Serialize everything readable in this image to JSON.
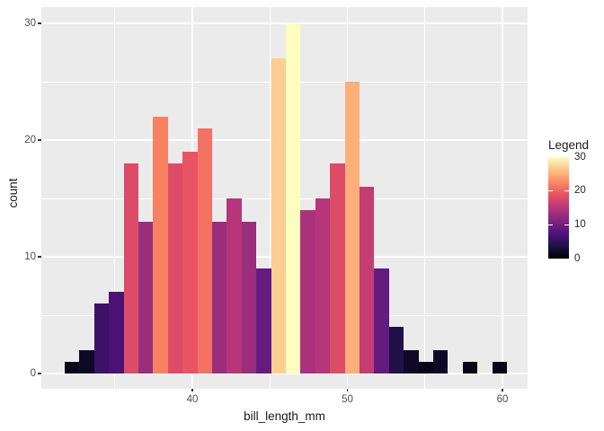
{
  "figure": {
    "background": "#FFFFFF",
    "panel_bg": "#EBEBEB",
    "grid_color": "#FFFFFF",
    "axis_text_color": "#4D4D4D",
    "tick_mark_color": "#333333"
  },
  "chart_data": {
    "type": "bar",
    "subtype": "histogram",
    "title": "",
    "xlabel": "bill_length_mm",
    "ylabel": "count",
    "bin_start": 31.77,
    "bin_width": 0.9507,
    "counts": [
      1,
      2,
      6,
      7,
      18,
      13,
      22,
      18,
      19,
      21,
      13,
      15,
      13,
      9,
      27,
      30,
      14,
      15,
      18,
      25,
      16,
      9,
      4,
      2,
      1,
      2,
      0,
      1,
      0,
      1
    ],
    "bar_colors": [
      "#080516",
      "#0F0928",
      "#3C1267",
      "#4A1275",
      "#DC4C68",
      "#9A2E7D",
      "#F88162",
      "#DC4C68",
      "#E75564",
      "#F37262",
      "#9A2E7D",
      "#B63679",
      "#9A2E7D",
      "#651A7E",
      "#FECE92",
      "#FCFDBF",
      "#A8327B",
      "#B63679",
      "#DC4C68",
      "#FDAF7A",
      "#C33D73",
      "#651A7E",
      "#20114B",
      "#0F0928",
      "#080516",
      "#0F0928",
      "#000000",
      "#080516",
      "#000000",
      "#080516"
    ],
    "x_major_ticks": [
      40,
      50,
      60
    ],
    "x_minor_ticks": [
      35,
      45,
      55
    ],
    "y_major_ticks": [
      0,
      10,
      20,
      30
    ],
    "y_minor_ticks": [
      5,
      15,
      25
    ],
    "xlim": [
      30.3,
      61.7
    ],
    "ylim": [
      -1.5,
      31.5
    ],
    "grid": true,
    "legend": {
      "title": "Legend",
      "position": "right",
      "labels": [
        30,
        20,
        10,
        0
      ],
      "tick_values": [
        20,
        10
      ],
      "range": [
        0,
        30
      ],
      "palette_name": "magma",
      "palette_stops": [
        "#000004",
        "#1D1147",
        "#51127C",
        "#822681",
        "#B63679",
        "#E65164",
        "#FB8861",
        "#FEC287",
        "#FCFDBF"
      ]
    }
  }
}
